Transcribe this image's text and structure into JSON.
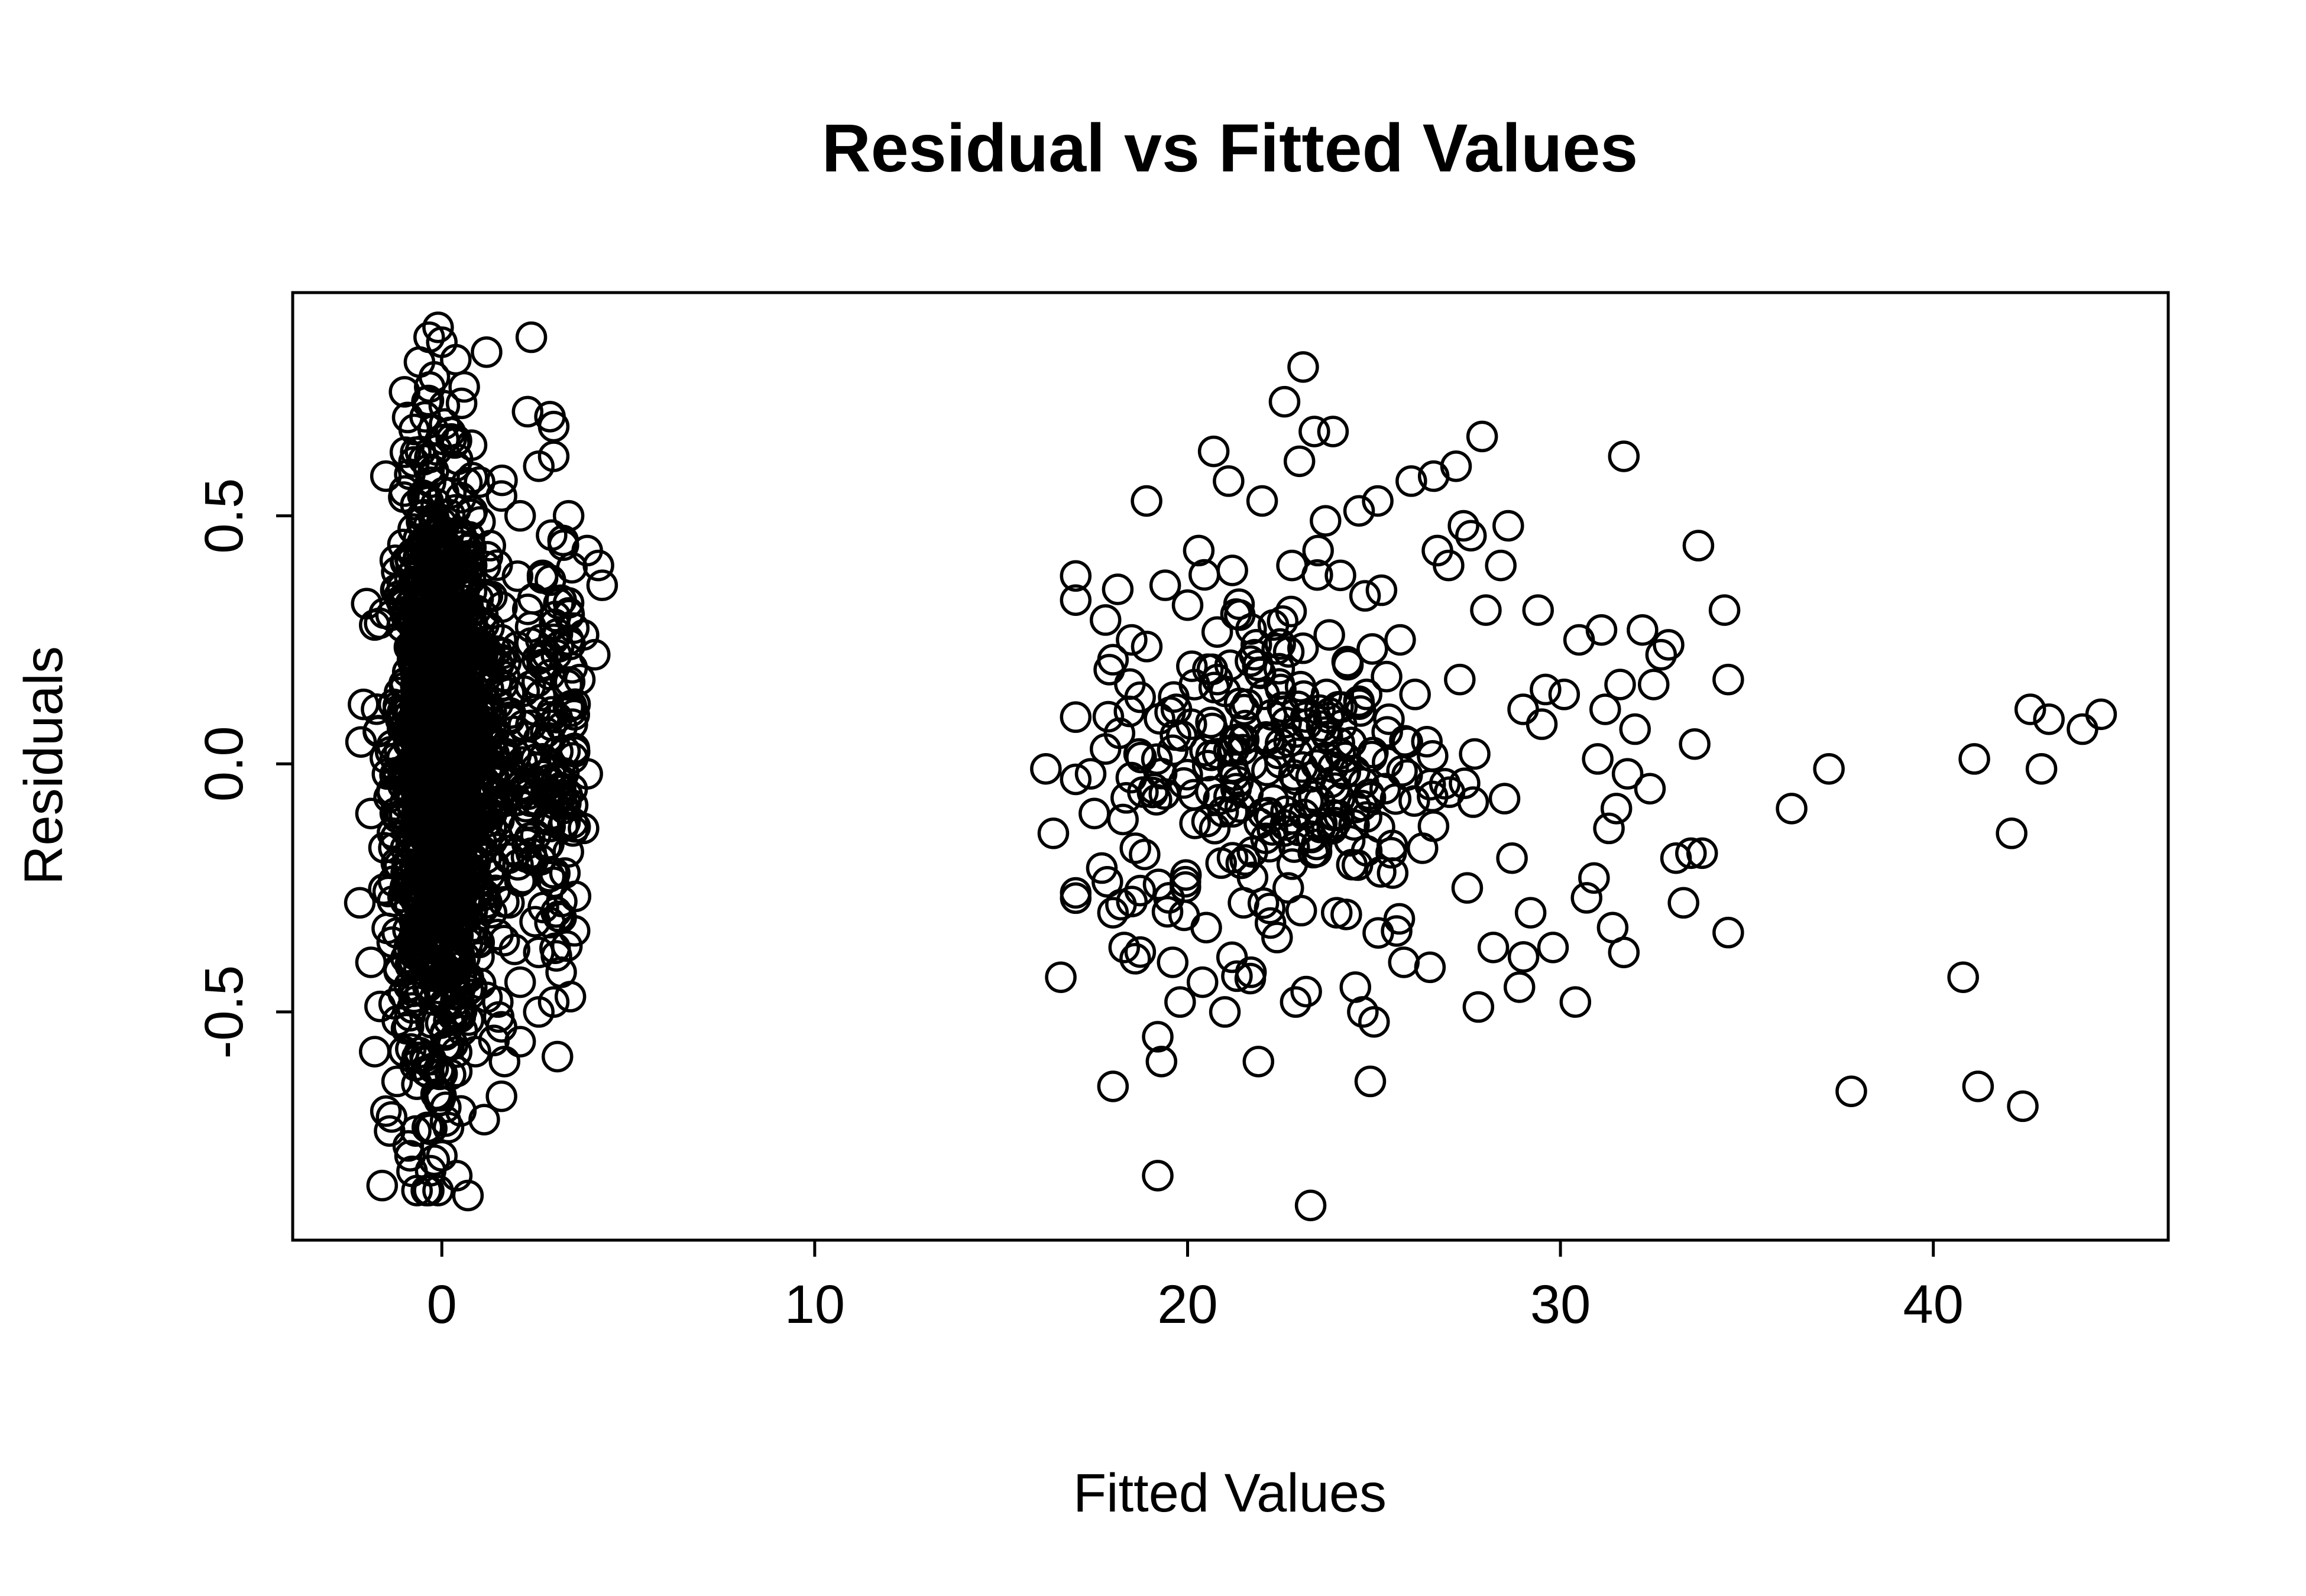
{
  "chart_data": {
    "type": "scatter",
    "title": "Residual vs Fitted Values",
    "xlabel": "Fitted Values",
    "ylabel": "Residuals",
    "xlim": [
      -4.0,
      46.3
    ],
    "ylim": [
      -0.96,
      0.95
    ],
    "x_ticks": [
      0,
      10,
      20,
      30,
      40
    ],
    "x_tick_labels": [
      "0",
      "10",
      "20",
      "30",
      "40"
    ],
    "y_ticks": [
      -0.5,
      0.0,
      0.5
    ],
    "y_tick_labels": [
      "-0.5",
      "0.0",
      "0.5"
    ],
    "grid": false,
    "legend": "none",
    "marker": "open-circle",
    "colors": {
      "points": "#000000",
      "axes": "#000000",
      "background": "#ffffff"
    },
    "series": [
      {
        "points": [
          [
            -0.1,
            0.88
          ],
          [
            2.4,
            0.86
          ],
          [
            1.2,
            0.83
          ],
          [
            0.0,
            0.85
          ],
          [
            -0.6,
            0.81
          ],
          [
            -0.2,
            0.78
          ],
          [
            2.3,
            0.71
          ],
          [
            2.9,
            0.7
          ],
          [
            3.0,
            0.68
          ],
          [
            0.6,
            0.76
          ],
          [
            -1.0,
            0.75
          ],
          [
            -0.4,
            0.73
          ],
          [
            2.6,
            0.6
          ],
          [
            3.0,
            0.62
          ],
          [
            -1.5,
            0.58
          ],
          [
            -1.0,
            0.55
          ],
          [
            1.6,
            0.54
          ],
          [
            2.1,
            0.5
          ],
          [
            3.4,
            0.5
          ],
          [
            1.3,
            0.44
          ],
          [
            3.9,
            0.43
          ],
          [
            4.2,
            0.4
          ],
          [
            4.3,
            0.36
          ],
          [
            2.7,
            0.38
          ],
          [
            3.2,
            0.33
          ],
          [
            1.1,
            0.3
          ],
          [
            -1.8,
            0.28
          ],
          [
            1.6,
            0.25
          ],
          [
            3.8,
            0.26
          ],
          [
            4.1,
            0.22
          ],
          [
            2.9,
            0.18
          ],
          [
            3.7,
            0.17
          ],
          [
            1.5,
            0.12
          ],
          [
            -2.1,
            0.12
          ],
          [
            3.5,
            0.08
          ],
          [
            2.6,
            0.05
          ],
          [
            1.4,
            0.02
          ],
          [
            3.9,
            -0.02
          ],
          [
            2.2,
            -0.05
          ],
          [
            3.0,
            -0.08
          ],
          [
            -1.9,
            -0.1
          ],
          [
            3.8,
            -0.13
          ],
          [
            1.2,
            -0.15
          ],
          [
            2.4,
            -0.18
          ],
          [
            3.3,
            -0.22
          ],
          [
            -2.2,
            -0.28
          ],
          [
            1.8,
            -0.28
          ],
          [
            2.9,
            -0.32
          ],
          [
            3.2,
            -0.31
          ],
          [
            1.0,
            -0.36
          ],
          [
            2.6,
            -0.38
          ],
          [
            -1.9,
            -0.4
          ],
          [
            3.2,
            -0.42
          ],
          [
            2.1,
            -0.44
          ],
          [
            1.5,
            -0.48
          ],
          [
            3.0,
            -0.48
          ],
          [
            2.6,
            -0.5
          ],
          [
            1.6,
            -0.53
          ],
          [
            2.1,
            -0.56
          ],
          [
            0.9,
            -0.58
          ],
          [
            3.1,
            -0.59
          ],
          [
            -1.8,
            -0.58
          ],
          [
            -1.5,
            -0.7
          ],
          [
            -1.4,
            -0.74
          ],
          [
            1.6,
            -0.67
          ],
          [
            -0.9,
            -0.77
          ],
          [
            0.0,
            -0.79
          ],
          [
            -0.3,
            -0.82
          ],
          [
            -1.6,
            -0.85
          ],
          [
            -0.1,
            -0.86
          ],
          [
            0.4,
            -0.83
          ],
          [
            0.7,
            -0.87
          ],
          [
            -0.7,
            -0.74
          ],
          [
            0.1,
            -0.72
          ],
          [
            -1.2,
            -0.64
          ],
          [
            0.4,
            -0.62
          ],
          [
            16.2,
            -0.01
          ],
          [
            16.4,
            -0.14
          ],
          [
            16.6,
            -0.43
          ],
          [
            17.0,
            -0.26
          ],
          [
            17.4,
            -0.02
          ],
          [
            17.5,
            -0.1
          ],
          [
            17.7,
            -0.21
          ],
          [
            17.8,
            0.03
          ],
          [
            17.9,
            0.19
          ],
          [
            17.8,
            0.29
          ],
          [
            18.0,
            0.21
          ],
          [
            18.0,
            -0.3
          ],
          [
            18.3,
            -0.37
          ],
          [
            18.5,
            0.25
          ],
          [
            18.6,
            -0.17
          ],
          [
            18.0,
            -0.65
          ],
          [
            18.7,
            0.02
          ],
          [
            18.9,
            0.53
          ],
          [
            19.1,
            -0.05
          ],
          [
            19.2,
            -0.55
          ],
          [
            19.3,
            -0.6
          ],
          [
            19.2,
            -0.83
          ],
          [
            19.4,
            0.36
          ],
          [
            19.5,
            -0.27
          ],
          [
            19.6,
            -0.4
          ],
          [
            19.7,
            0.11
          ],
          [
            19.8,
            -0.48
          ],
          [
            20.0,
            0.32
          ],
          [
            20.1,
            0.08
          ],
          [
            20.2,
            -0.12
          ],
          [
            20.3,
            0.43
          ],
          [
            20.4,
            -0.44
          ],
          [
            20.5,
            -0.33
          ],
          [
            20.7,
            0.63
          ],
          [
            20.8,
            0.17
          ],
          [
            20.9,
            -0.2
          ],
          [
            21.0,
            -0.5
          ],
          [
            21.1,
            0.57
          ],
          [
            21.2,
            0.39
          ],
          [
            21.3,
            -0.05
          ],
          [
            21.4,
            0.3
          ],
          [
            21.5,
            -0.28
          ],
          [
            21.6,
            0.12
          ],
          [
            21.7,
            -0.42
          ],
          [
            21.8,
            0.22
          ],
          [
            21.9,
            -0.6
          ],
          [
            22.0,
            0.53
          ],
          [
            22.1,
            -0.15
          ],
          [
            22.2,
            0.05
          ],
          [
            22.3,
            0.28
          ],
          [
            22.4,
            -0.35
          ],
          [
            22.5,
            0.15
          ],
          [
            22.6,
            0.73
          ],
          [
            22.7,
            -0.25
          ],
          [
            22.8,
            0.4
          ],
          [
            22.9,
            -0.48
          ],
          [
            23.0,
            0.61
          ],
          [
            23.1,
            0.8
          ],
          [
            23.2,
            0.08
          ],
          [
            23.3,
            -0.89
          ],
          [
            23.4,
            0.67
          ],
          [
            23.5,
            0.43
          ],
          [
            23.6,
            -0.12
          ],
          [
            23.7,
            0.49
          ],
          [
            23.8,
            0.26
          ],
          [
            23.9,
            0.67
          ],
          [
            24.0,
            -0.3
          ],
          [
            24.1,
            0.38
          ],
          [
            24.2,
            -0.02
          ],
          [
            24.3,
            0.2
          ],
          [
            24.5,
            -0.45
          ],
          [
            24.6,
            0.51
          ],
          [
            24.7,
            -0.5
          ],
          [
            24.8,
            0.14
          ],
          [
            24.9,
            -0.64
          ],
          [
            25.0,
            -0.52
          ],
          [
            25.1,
            0.53
          ],
          [
            25.2,
            0.35
          ],
          [
            25.3,
            -0.05
          ],
          [
            25.4,
            0.09
          ],
          [
            25.5,
            -0.22
          ],
          [
            25.7,
            0.25
          ],
          [
            25.8,
            -0.4
          ],
          [
            26.0,
            0.57
          ],
          [
            26.1,
            0.14
          ],
          [
            26.3,
            -0.17
          ],
          [
            26.5,
            -0.41
          ],
          [
            26.6,
            0.58
          ],
          [
            26.7,
            0.43
          ],
          [
            26.9,
            -0.04
          ],
          [
            27.0,
            0.4
          ],
          [
            27.2,
            0.6
          ],
          [
            27.3,
            0.17
          ],
          [
            27.4,
            0.48
          ],
          [
            27.5,
            -0.25
          ],
          [
            27.6,
            0.46
          ],
          [
            27.7,
            0.02
          ],
          [
            27.8,
            -0.49
          ],
          [
            27.9,
            0.66
          ],
          [
            28.0,
            0.31
          ],
          [
            28.2,
            -0.37
          ],
          [
            28.4,
            0.4
          ],
          [
            28.5,
            -0.07
          ],
          [
            28.6,
            0.48
          ],
          [
            28.7,
            -0.19
          ],
          [
            28.9,
            -0.45
          ],
          [
            29.0,
            0.11
          ],
          [
            29.2,
            -0.3
          ],
          [
            29.4,
            0.31
          ],
          [
            29.5,
            0.08
          ],
          [
            29.6,
            0.15
          ],
          [
            29.8,
            -0.37
          ],
          [
            30.1,
            0.14
          ],
          [
            30.4,
            -0.48
          ],
          [
            30.5,
            0.25
          ],
          [
            30.7,
            -0.27
          ],
          [
            30.9,
            -0.23
          ],
          [
            31.0,
            0.01
          ],
          [
            31.1,
            0.27
          ],
          [
            31.2,
            0.11
          ],
          [
            31.3,
            -0.13
          ],
          [
            31.4,
            -0.33
          ],
          [
            31.5,
            -0.09
          ],
          [
            31.6,
            0.16
          ],
          [
            31.7,
            0.62
          ],
          [
            31.7,
            -0.38
          ],
          [
            31.8,
            -0.02
          ],
          [
            32.0,
            0.07
          ],
          [
            32.2,
            0.27
          ],
          [
            32.4,
            -0.05
          ],
          [
            32.5,
            0.16
          ],
          [
            32.7,
            0.22
          ],
          [
            32.9,
            0.24
          ],
          [
            33.1,
            -0.19
          ],
          [
            33.3,
            -0.28
          ],
          [
            33.5,
            -0.18
          ],
          [
            33.6,
            0.04
          ],
          [
            33.7,
            0.44
          ],
          [
            33.8,
            -0.18
          ],
          [
            34.4,
            0.31
          ],
          [
            34.5,
            -0.34
          ],
          [
            34.5,
            0.17
          ],
          [
            36.2,
            -0.09
          ],
          [
            37.2,
            -0.01
          ],
          [
            37.8,
            -0.66
          ],
          [
            40.8,
            -0.43
          ],
          [
            41.1,
            0.01
          ],
          [
            41.2,
            -0.65
          ],
          [
            42.1,
            -0.14
          ],
          [
            42.4,
            -0.69
          ],
          [
            42.6,
            0.11
          ],
          [
            42.9,
            -0.01
          ],
          [
            43.1,
            0.09
          ],
          [
            44.0,
            0.07
          ],
          [
            44.5,
            0.1
          ]
        ]
      }
    ]
  }
}
